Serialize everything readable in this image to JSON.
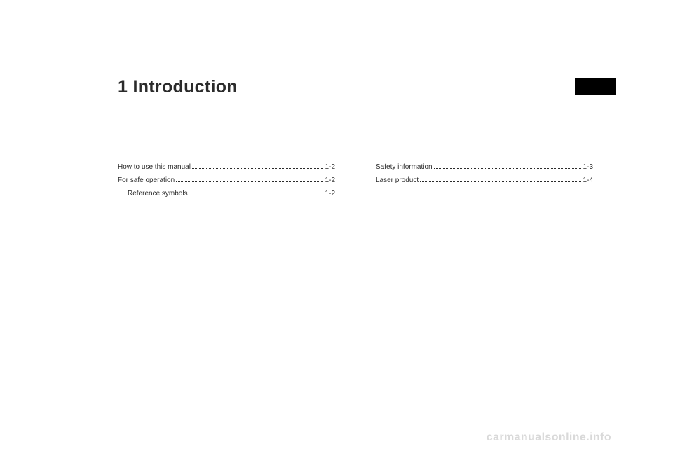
{
  "chapter": {
    "number": "1",
    "title": "Introduction"
  },
  "toc": {
    "left": [
      {
        "label": "How to use this manual",
        "page": "1-2",
        "indent": false
      },
      {
        "label": "For safe operation",
        "page": "1-2",
        "indent": false
      },
      {
        "label": "Reference symbols",
        "page": "1-2",
        "indent": true
      }
    ],
    "right": [
      {
        "label": "Safety information",
        "page": "1-3",
        "indent": false
      },
      {
        "label": "Laser product",
        "page": "1-4",
        "indent": false
      }
    ]
  },
  "watermark": "carmanualsonline.info",
  "colors": {
    "text": "#2b2b2b",
    "tab": "#000000",
    "watermark": "#d9d9d9",
    "background": "#ffffff"
  }
}
